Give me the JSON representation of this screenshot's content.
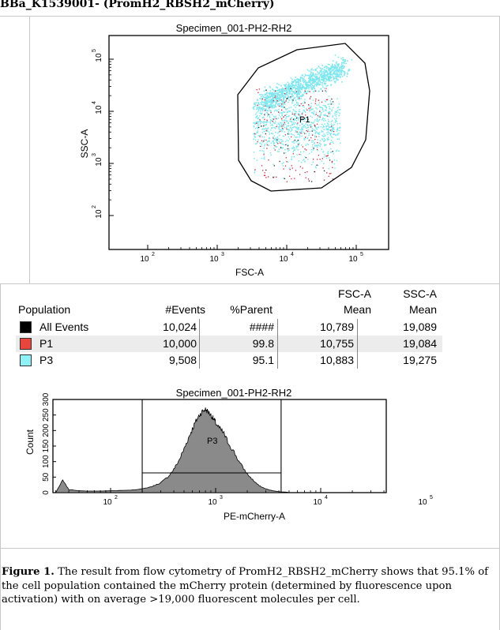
{
  "header": {
    "title": "BBa_K1539001- (PromH2_RBSH2_mCherry)"
  },
  "dot_plot": {
    "title": "Specimen_001-PH2-RH2",
    "xlabel": "FSC-A",
    "ylabel": "SSC-A",
    "gate_label": "P1",
    "x_ticks": [
      {
        "base": "10",
        "exp": "2"
      },
      {
        "base": "10",
        "exp": "3"
      },
      {
        "base": "10",
        "exp": "4"
      },
      {
        "base": "10",
        "exp": "5"
      }
    ],
    "y_ticks": [
      {
        "base": "10",
        "exp": "2"
      },
      {
        "base": "10",
        "exp": "3"
      },
      {
        "base": "10",
        "exp": "4"
      },
      {
        "base": "10",
        "exp": "5"
      }
    ],
    "colors": {
      "p3": "#7fe6ee",
      "p1": "#c8283c",
      "all": "#222222"
    }
  },
  "table": {
    "headers": {
      "population": "Population",
      "events": "#Events",
      "parent": "%Parent",
      "fsc_top": "FSC-A",
      "fsc_bottom": "Mean",
      "ssc_top": "SSC-A",
      "ssc_bottom": "Mean"
    },
    "rows": [
      {
        "name": "All Events",
        "events": "10,024",
        "parent": "####",
        "fsc": "10,789",
        "ssc": "19,089",
        "color": "#000000"
      },
      {
        "name": "P1",
        "events": "10,000",
        "parent": "99.8",
        "fsc": "10,755",
        "ssc": "19,084",
        "color": "#e8453c"
      },
      {
        "name": "P3",
        "events": "9,508",
        "parent": "95.1",
        "fsc": "10,883",
        "ssc": "19,275",
        "color": "#8ff0f5"
      }
    ]
  },
  "chart_data": {
    "type": "area",
    "title": "Specimen_001-PH2-RH2",
    "xlabel": "PE-mCherry-A",
    "ylabel": "Count",
    "x_scale": "log",
    "x_ticks": [
      {
        "base": "10",
        "exp": "2"
      },
      {
        "base": "10",
        "exp": "3"
      },
      {
        "base": "10",
        "exp": "4"
      },
      {
        "base": "10",
        "exp": "5"
      }
    ],
    "y_tick_labels": [
      "0",
      "50",
      "100",
      "150",
      "200",
      "250",
      "300"
    ],
    "ylim": [
      0,
      300
    ],
    "gate_label": "P3",
    "gate_range": [
      200,
      4200
    ],
    "x": [
      30,
      35,
      40,
      50,
      60,
      80,
      100,
      150,
      200,
      250,
      300,
      350,
      400,
      450,
      500,
      550,
      600,
      650,
      700,
      750,
      800,
      850,
      900,
      950,
      1000,
      1100,
      1200,
      1300,
      1500,
      1700,
      2000,
      2300,
      2600,
      3000,
      3500,
      4000,
      5000
    ],
    "values": [
      0,
      40,
      10,
      6,
      5,
      5,
      6,
      8,
      12,
      20,
      32,
      50,
      75,
      105,
      140,
      175,
      205,
      230,
      250,
      262,
      268,
      260,
      250,
      238,
      225,
      205,
      190,
      165,
      130,
      95,
      60,
      38,
      22,
      12,
      6,
      3,
      1
    ]
  },
  "caption": {
    "label": "Figure 1.",
    "text": " The result from flow cytometry of PromH2_RBSH2_mCherry shows that 95.1% of the cell population contained the mCherry protein (determined by fluorescence upon activation) with on average >19,000 fluorescent molecules per cell."
  }
}
